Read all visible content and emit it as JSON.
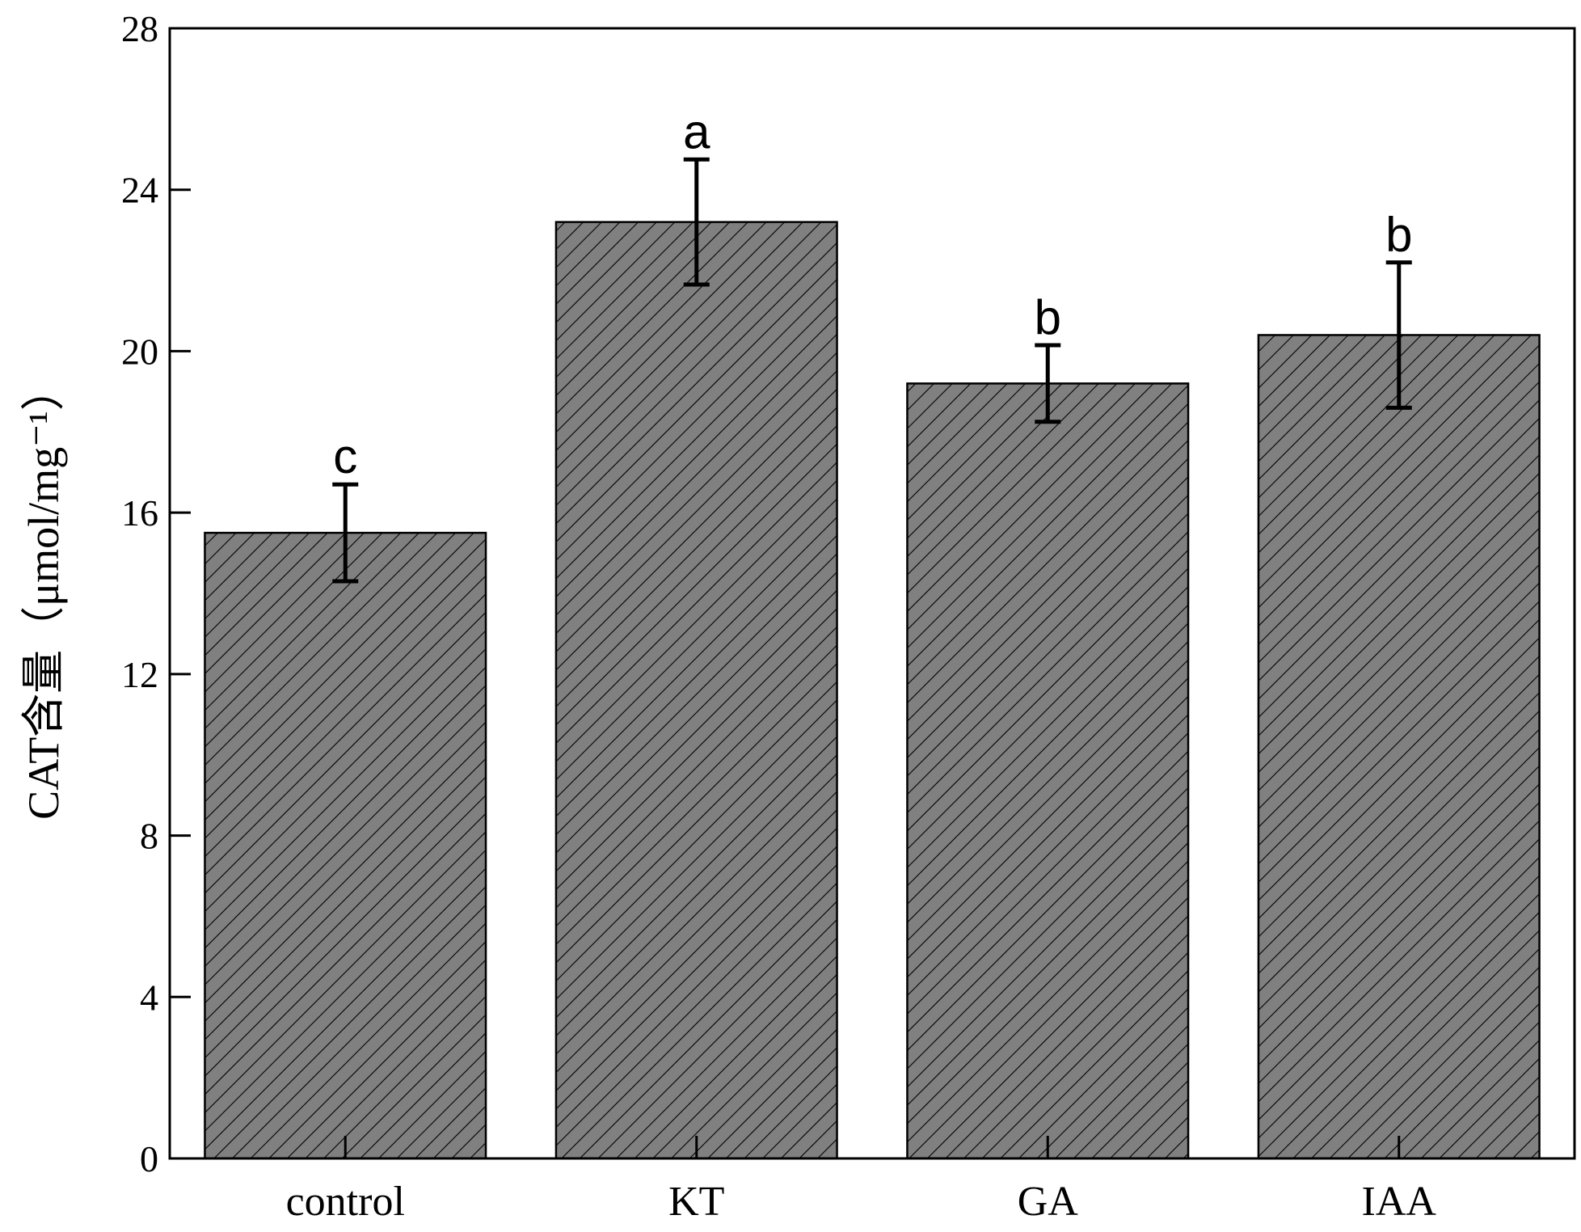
{
  "chart_data": {
    "type": "bar",
    "title": "",
    "xlabel": "",
    "ylabel": "CAT含量（μmol/mg⁻¹）",
    "ylim": [
      0,
      28
    ],
    "yticks": [
      0,
      4,
      8,
      12,
      16,
      20,
      24,
      28
    ],
    "categories": [
      "control",
      "KT",
      "GA",
      "IAA"
    ],
    "series": [
      {
        "name": "CAT",
        "values": [
          15.5,
          23.2,
          19.2,
          20.4
        ],
        "errors": [
          1.2,
          1.55,
          0.95,
          1.8
        ],
        "significance": [
          "c",
          "a",
          "b",
          "b"
        ]
      }
    ],
    "bar_fill": "#808080",
    "bar_stroke": "#000000",
    "pattern": "diagonal-hatch",
    "grid": false,
    "legend": "none"
  }
}
